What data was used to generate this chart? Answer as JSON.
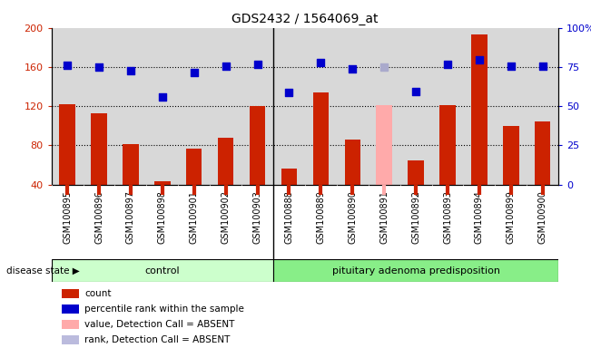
{
  "title": "GDS2432 / 1564069_at",
  "samples": [
    "GSM100895",
    "GSM100896",
    "GSM100897",
    "GSM100898",
    "GSM100901",
    "GSM100902",
    "GSM100903",
    "GSM100888",
    "GSM100889",
    "GSM100890",
    "GSM100891",
    "GSM100892",
    "GSM100893",
    "GSM100894",
    "GSM100899",
    "GSM100900"
  ],
  "bar_values": [
    122,
    113,
    81,
    43,
    77,
    88,
    120,
    56,
    134,
    86,
    121,
    65,
    121,
    193,
    100,
    104
  ],
  "bar_colors": [
    "#cc2200",
    "#cc2200",
    "#cc2200",
    "#cc2200",
    "#cc2200",
    "#cc2200",
    "#cc2200",
    "#cc2200",
    "#cc2200",
    "#cc2200",
    "#ffaaaa",
    "#cc2200",
    "#cc2200",
    "#cc2200",
    "#cc2200",
    "#cc2200"
  ],
  "dot_values": [
    162,
    160,
    156,
    129,
    154,
    161,
    163,
    134,
    165,
    158,
    160,
    135,
    163,
    167,
    161,
    161
  ],
  "dot_colors": [
    "#0000cc",
    "#0000cc",
    "#0000cc",
    "#0000cc",
    "#0000cc",
    "#0000cc",
    "#0000cc",
    "#0000cc",
    "#0000cc",
    "#0000cc",
    "#aaaacc",
    "#0000cc",
    "#0000cc",
    "#0000cc",
    "#0000cc",
    "#0000cc"
  ],
  "ylim_left": [
    40,
    200
  ],
  "yticks_left": [
    40,
    80,
    120,
    160,
    200
  ],
  "yticks_right_vals": [
    0,
    25,
    50,
    75,
    100
  ],
  "ytick_labels_right": [
    "0",
    "25",
    "50",
    "75",
    "100%"
  ],
  "hlines": [
    80,
    120,
    160
  ],
  "control_samples": 7,
  "group_labels": [
    "control",
    "pituitary adenoma predisposition"
  ],
  "group_colors": [
    "#ccffcc",
    "#88ee88"
  ],
  "disease_state_label": "disease state",
  "legend_items": [
    {
      "label": "count",
      "color": "#cc2200"
    },
    {
      "label": "percentile rank within the sample",
      "color": "#0000cc"
    },
    {
      "label": "value, Detection Call = ABSENT",
      "color": "#ffaaaa"
    },
    {
      "label": "rank, Detection Call = ABSENT",
      "color": "#bbbbdd"
    }
  ],
  "bar_width": 0.5,
  "dot_size": 35,
  "plot_bg_color": "#d8d8d8",
  "tick_label_bg": "#d0d0d0"
}
